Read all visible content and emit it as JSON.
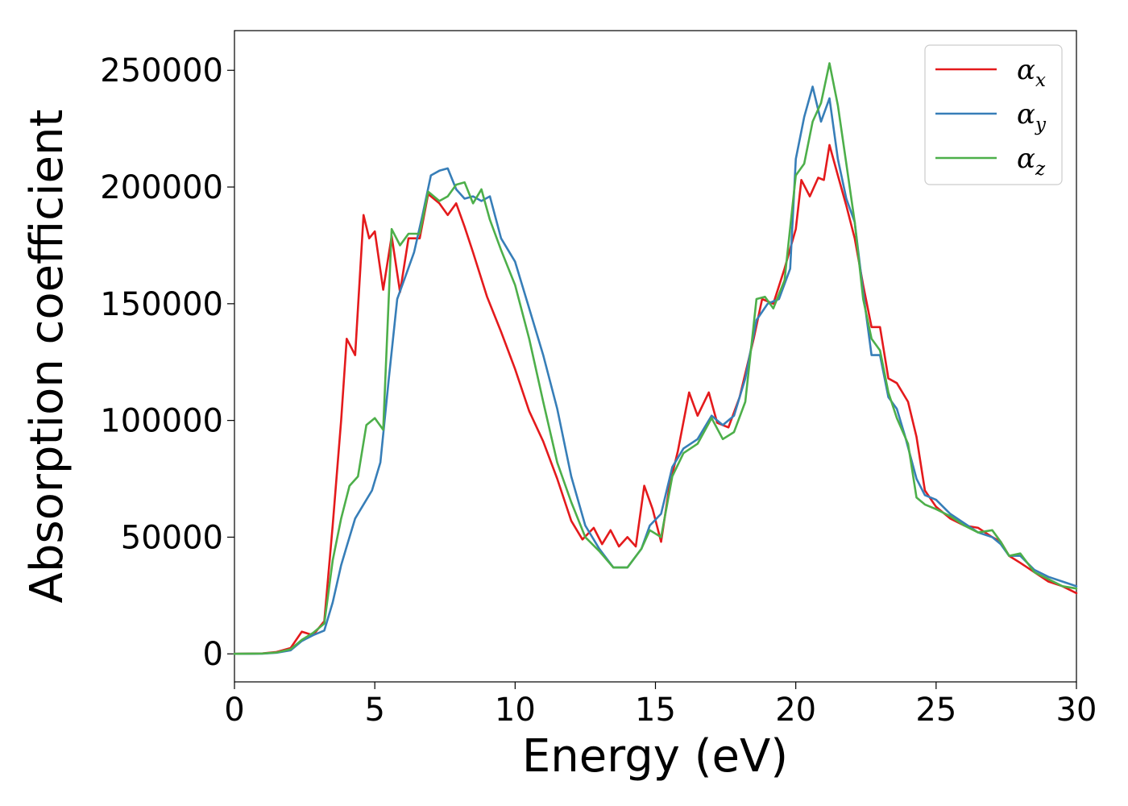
{
  "chart_data": {
    "type": "line",
    "title": "",
    "xlabel": "Energy (eV)",
    "ylabel": "Absorption coefficient",
    "xlim": [
      0,
      30
    ],
    "ylim": [
      -12000,
      267000
    ],
    "xticks": [
      0,
      5,
      10,
      15,
      20,
      25,
      30
    ],
    "yticks": [
      0,
      50000,
      100000,
      150000,
      200000,
      250000
    ],
    "grid": false,
    "legend_position": "top-right",
    "series": [
      {
        "name": "α_x",
        "label_base": "α",
        "label_sub": "x",
        "color": "#e41a1c",
        "points": [
          [
            0,
            0
          ],
          [
            1,
            200
          ],
          [
            1.5,
            800
          ],
          [
            2,
            2500
          ],
          [
            2.4,
            9500
          ],
          [
            2.8,
            8000
          ],
          [
            3.2,
            14000
          ],
          [
            3.5,
            55000
          ],
          [
            3.8,
            100000
          ],
          [
            4.0,
            135000
          ],
          [
            4.3,
            128000
          ],
          [
            4.6,
            188000
          ],
          [
            4.8,
            178000
          ],
          [
            5.0,
            181000
          ],
          [
            5.3,
            156000
          ],
          [
            5.6,
            179000
          ],
          [
            5.9,
            155000
          ],
          [
            6.2,
            178000
          ],
          [
            6.6,
            178000
          ],
          [
            6.9,
            197000
          ],
          [
            7.3,
            193000
          ],
          [
            7.6,
            188000
          ],
          [
            7.9,
            193000
          ],
          [
            8.2,
            183000
          ],
          [
            8.5,
            172000
          ],
          [
            9.0,
            153000
          ],
          [
            9.5,
            138000
          ],
          [
            10.0,
            122000
          ],
          [
            10.5,
            104000
          ],
          [
            11.0,
            91000
          ],
          [
            11.5,
            75000
          ],
          [
            12.0,
            57000
          ],
          [
            12.4,
            49000
          ],
          [
            12.8,
            54000
          ],
          [
            13.1,
            47000
          ],
          [
            13.4,
            53000
          ],
          [
            13.7,
            46000
          ],
          [
            14.0,
            50000
          ],
          [
            14.3,
            46000
          ],
          [
            14.6,
            72000
          ],
          [
            14.9,
            62000
          ],
          [
            15.2,
            48000
          ],
          [
            15.5,
            72000
          ],
          [
            15.8,
            87000
          ],
          [
            16.2,
            112000
          ],
          [
            16.5,
            102000
          ],
          [
            16.9,
            112000
          ],
          [
            17.2,
            99000
          ],
          [
            17.6,
            97000
          ],
          [
            18.0,
            110000
          ],
          [
            18.5,
            135000
          ],
          [
            18.8,
            152000
          ],
          [
            19.2,
            150000
          ],
          [
            19.6,
            165000
          ],
          [
            20.0,
            182000
          ],
          [
            20.2,
            203000
          ],
          [
            20.5,
            196000
          ],
          [
            20.8,
            204000
          ],
          [
            21.0,
            203000
          ],
          [
            21.2,
            218000
          ],
          [
            21.5,
            205000
          ],
          [
            21.8,
            192000
          ],
          [
            22.1,
            178000
          ],
          [
            22.4,
            158000
          ],
          [
            22.7,
            140000
          ],
          [
            23.0,
            140000
          ],
          [
            23.3,
            118000
          ],
          [
            23.6,
            116000
          ],
          [
            24.0,
            108000
          ],
          [
            24.3,
            93000
          ],
          [
            24.6,
            70000
          ],
          [
            25.0,
            63000
          ],
          [
            25.5,
            58000
          ],
          [
            26.0,
            55000
          ],
          [
            26.5,
            54000
          ],
          [
            27.0,
            50000
          ],
          [
            27.3,
            48000
          ],
          [
            27.6,
            42000
          ],
          [
            28.0,
            39000
          ],
          [
            28.5,
            35000
          ],
          [
            29.0,
            31000
          ],
          [
            29.5,
            29000
          ],
          [
            30.0,
            26000
          ]
        ]
      },
      {
        "name": "α_y",
        "label_base": "α",
        "label_sub": "y",
        "color": "#377eb8",
        "points": [
          [
            0,
            0
          ],
          [
            1,
            100
          ],
          [
            1.5,
            500
          ],
          [
            2,
            1500
          ],
          [
            2.4,
            5500
          ],
          [
            2.8,
            8000
          ],
          [
            3.2,
            10000
          ],
          [
            3.5,
            22000
          ],
          [
            3.8,
            38000
          ],
          [
            4.0,
            46000
          ],
          [
            4.3,
            58000
          ],
          [
            4.6,
            64000
          ],
          [
            4.9,
            70000
          ],
          [
            5.2,
            82000
          ],
          [
            5.5,
            118000
          ],
          [
            5.8,
            152000
          ],
          [
            6.1,
            162000
          ],
          [
            6.4,
            172000
          ],
          [
            6.7,
            188000
          ],
          [
            7.0,
            205000
          ],
          [
            7.3,
            207000
          ],
          [
            7.6,
            208000
          ],
          [
            7.9,
            199000
          ],
          [
            8.2,
            195000
          ],
          [
            8.5,
            196000
          ],
          [
            8.8,
            194000
          ],
          [
            9.1,
            196000
          ],
          [
            9.5,
            178000
          ],
          [
            10.0,
            168000
          ],
          [
            10.5,
            148000
          ],
          [
            11.0,
            128000
          ],
          [
            11.5,
            105000
          ],
          [
            12.0,
            76000
          ],
          [
            12.5,
            55000
          ],
          [
            13.0,
            45000
          ],
          [
            13.5,
            37000
          ],
          [
            14.0,
            37000
          ],
          [
            14.5,
            45000
          ],
          [
            14.8,
            55000
          ],
          [
            15.2,
            60000
          ],
          [
            15.6,
            80000
          ],
          [
            16.0,
            88000
          ],
          [
            16.5,
            92000
          ],
          [
            17.0,
            102000
          ],
          [
            17.4,
            98000
          ],
          [
            17.8,
            102000
          ],
          [
            18.2,
            118000
          ],
          [
            18.6,
            143000
          ],
          [
            19.0,
            150000
          ],
          [
            19.4,
            152000
          ],
          [
            19.8,
            165000
          ],
          [
            20.0,
            212000
          ],
          [
            20.3,
            230000
          ],
          [
            20.6,
            243000
          ],
          [
            20.9,
            228000
          ],
          [
            21.2,
            238000
          ],
          [
            21.5,
            212000
          ],
          [
            21.8,
            195000
          ],
          [
            22.1,
            185000
          ],
          [
            22.4,
            155000
          ],
          [
            22.7,
            128000
          ],
          [
            23.0,
            128000
          ],
          [
            23.3,
            110000
          ],
          [
            23.6,
            105000
          ],
          [
            23.9,
            93000
          ],
          [
            24.3,
            75000
          ],
          [
            24.6,
            68000
          ],
          [
            25.0,
            66000
          ],
          [
            25.5,
            60000
          ],
          [
            26.0,
            56000
          ],
          [
            26.5,
            52000
          ],
          [
            27.0,
            50000
          ],
          [
            27.3,
            47000
          ],
          [
            27.6,
            42000
          ],
          [
            28.0,
            42000
          ],
          [
            28.5,
            36000
          ],
          [
            29.0,
            33000
          ],
          [
            29.5,
            31000
          ],
          [
            30.0,
            29000
          ]
        ]
      },
      {
        "name": "α_z",
        "label_base": "α",
        "label_sub": "z",
        "color": "#4daf4a",
        "points": [
          [
            0,
            0
          ],
          [
            1,
            150
          ],
          [
            1.5,
            600
          ],
          [
            2,
            2000
          ],
          [
            2.4,
            6000
          ],
          [
            2.8,
            9000
          ],
          [
            3.2,
            13000
          ],
          [
            3.5,
            40000
          ],
          [
            3.8,
            58000
          ],
          [
            4.1,
            72000
          ],
          [
            4.4,
            76000
          ],
          [
            4.7,
            98000
          ],
          [
            5.0,
            101000
          ],
          [
            5.3,
            96000
          ],
          [
            5.6,
            182000
          ],
          [
            5.9,
            175000
          ],
          [
            6.2,
            180000
          ],
          [
            6.6,
            180000
          ],
          [
            6.9,
            198000
          ],
          [
            7.3,
            194000
          ],
          [
            7.6,
            196000
          ],
          [
            7.9,
            201000
          ],
          [
            8.2,
            202000
          ],
          [
            8.5,
            193000
          ],
          [
            8.8,
            199000
          ],
          [
            9.1,
            186000
          ],
          [
            9.5,
            173000
          ],
          [
            10.0,
            158000
          ],
          [
            10.5,
            135000
          ],
          [
            11.0,
            108000
          ],
          [
            11.5,
            82000
          ],
          [
            12.0,
            65000
          ],
          [
            12.5,
            50000
          ],
          [
            13.0,
            44000
          ],
          [
            13.5,
            37000
          ],
          [
            14.0,
            37000
          ],
          [
            14.5,
            45000
          ],
          [
            14.8,
            53000
          ],
          [
            15.2,
            50000
          ],
          [
            15.6,
            76000
          ],
          [
            16.0,
            86000
          ],
          [
            16.5,
            90000
          ],
          [
            17.0,
            101000
          ],
          [
            17.4,
            92000
          ],
          [
            17.8,
            95000
          ],
          [
            18.2,
            108000
          ],
          [
            18.6,
            152000
          ],
          [
            18.9,
            153000
          ],
          [
            19.2,
            148000
          ],
          [
            19.6,
            160000
          ],
          [
            20.0,
            205000
          ],
          [
            20.3,
            210000
          ],
          [
            20.6,
            228000
          ],
          [
            20.9,
            236000
          ],
          [
            21.2,
            253000
          ],
          [
            21.5,
            235000
          ],
          [
            21.8,
            210000
          ],
          [
            22.1,
            185000
          ],
          [
            22.4,
            152000
          ],
          [
            22.7,
            135000
          ],
          [
            23.0,
            130000
          ],
          [
            23.3,
            112000
          ],
          [
            23.6,
            101000
          ],
          [
            24.0,
            90000
          ],
          [
            24.3,
            67000
          ],
          [
            24.6,
            64000
          ],
          [
            25.0,
            62000
          ],
          [
            25.5,
            59000
          ],
          [
            26.0,
            55000
          ],
          [
            26.5,
            52000
          ],
          [
            27.0,
            53000
          ],
          [
            27.3,
            48000
          ],
          [
            27.6,
            42000
          ],
          [
            28.0,
            43000
          ],
          [
            28.5,
            35000
          ],
          [
            29.0,
            32000
          ],
          [
            29.5,
            29000
          ],
          [
            30.0,
            28000
          ]
        ]
      }
    ]
  }
}
